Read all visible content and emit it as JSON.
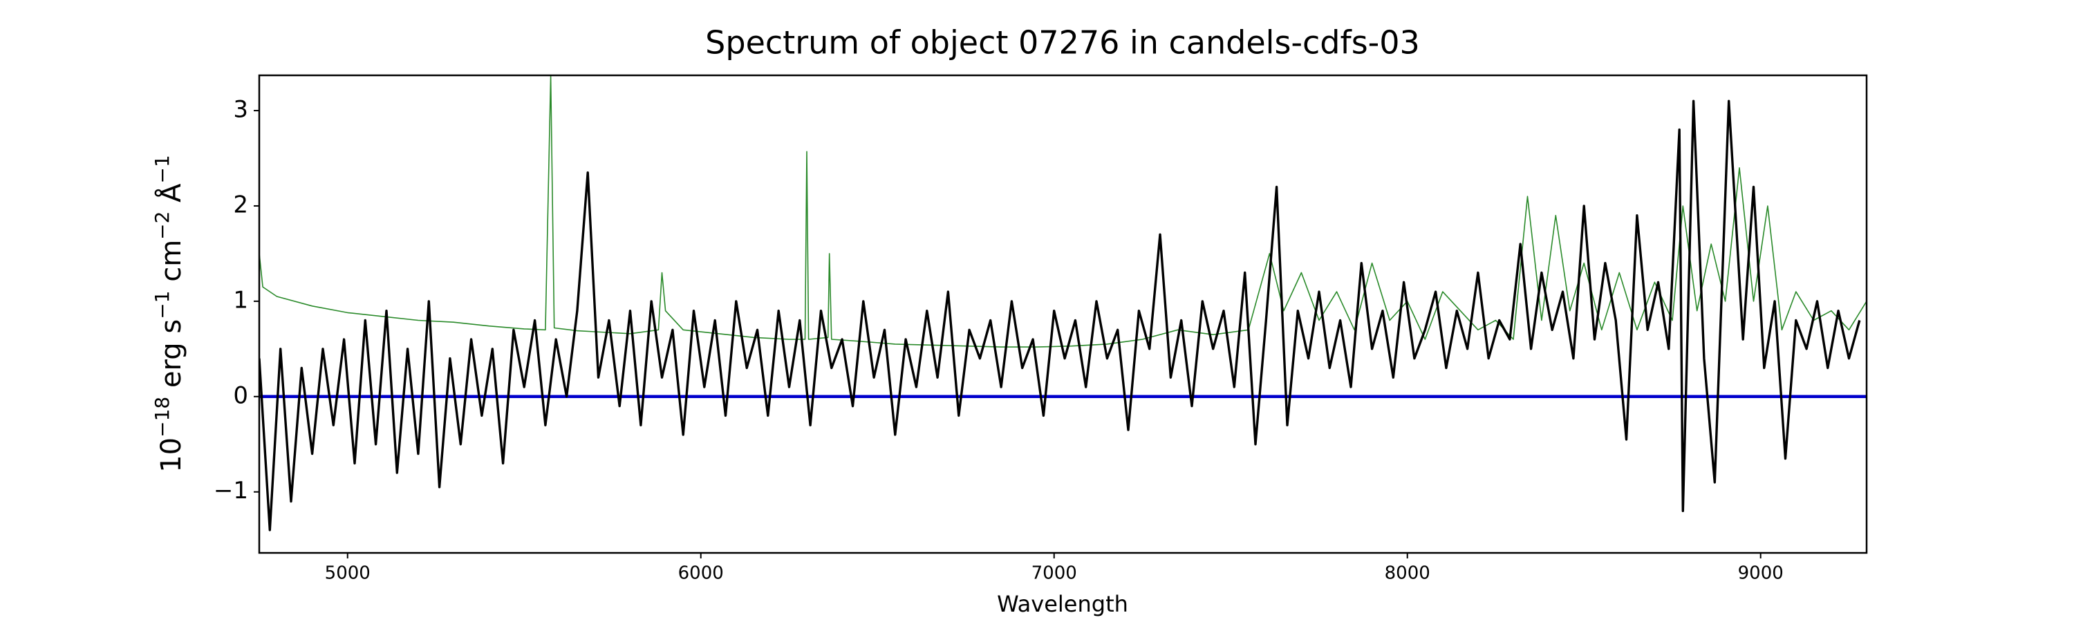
{
  "chart_data": {
    "type": "line",
    "title": "Spectrum of object 07276 in candels-cdfs-03",
    "xlabel": "Wavelength",
    "ylabel": [
      {
        "text": "10"
      },
      {
        "text": "−18",
        "sup": true
      },
      {
        "text": " erg s"
      },
      {
        "text": "−1",
        "sup": true
      },
      {
        "text": " cm"
      },
      {
        "text": "−2",
        "sup": true
      },
      {
        "text": " Å"
      },
      {
        "text": "−1",
        "sup": true
      }
    ],
    "xlim": [
      4750,
      9300
    ],
    "ylim": [
      -1.64,
      3.37
    ],
    "xticks": [
      5000,
      6000,
      7000,
      8000,
      9000
    ],
    "yticks": [
      {
        "value": -1,
        "label": "−1"
      },
      0,
      1,
      2,
      3
    ],
    "series": [
      {
        "color": "#2a8a2a",
        "width": 1.6,
        "x": [
          4750,
          4760,
          4800,
          4900,
          5000,
          5100,
          5200,
          5300,
          5400,
          5500,
          5560,
          5575,
          5585,
          5650,
          5700,
          5800,
          5880,
          5890,
          5900,
          5950,
          6050,
          6150,
          6250,
          6295,
          6300,
          6305,
          6360,
          6364,
          6370,
          6450,
          6550,
          6650,
          6750,
          6850,
          6950,
          7050,
          7150,
          7250,
          7350,
          7450,
          7550,
          7610,
          7650,
          7700,
          7750,
          7800,
          7850,
          7900,
          7950,
          8000,
          8050,
          8100,
          8150,
          8200,
          8250,
          8300,
          8340,
          8380,
          8420,
          8460,
          8500,
          8550,
          8600,
          8650,
          8700,
          8750,
          8780,
          8820,
          8860,
          8900,
          8940,
          8980,
          9020,
          9060,
          9100,
          9150,
          9200,
          9250,
          9300
        ],
        "values": [
          1.5,
          1.15,
          1.05,
          0.95,
          0.88,
          0.84,
          0.8,
          0.78,
          0.74,
          0.71,
          0.7,
          3.37,
          0.72,
          0.69,
          0.68,
          0.66,
          0.7,
          1.3,
          0.9,
          0.7,
          0.66,
          0.62,
          0.6,
          0.6,
          2.57,
          0.6,
          0.62,
          1.5,
          0.6,
          0.58,
          0.55,
          0.54,
          0.53,
          0.52,
          0.52,
          0.53,
          0.55,
          0.6,
          0.7,
          0.65,
          0.7,
          1.5,
          0.9,
          1.3,
          0.8,
          1.1,
          0.7,
          1.4,
          0.8,
          1.0,
          0.6,
          1.1,
          0.9,
          0.7,
          0.8,
          0.6,
          2.1,
          0.8,
          1.9,
          0.9,
          1.4,
          0.7,
          1.3,
          0.7,
          1.2,
          0.8,
          2.0,
          0.9,
          1.6,
          1.0,
          2.4,
          1.0,
          2.0,
          0.7,
          1.1,
          0.8,
          0.9,
          0.7,
          1.0
        ]
      },
      {
        "color": "#0000cc",
        "width": 4.5,
        "x": [
          4750,
          9300
        ],
        "values": [
          0,
          0
        ]
      },
      {
        "color": "#000000",
        "width": 3.4,
        "x": [
          4750,
          4780,
          4810,
          4840,
          4870,
          4900,
          4930,
          4960,
          4990,
          5020,
          5050,
          5080,
          5110,
          5140,
          5170,
          5200,
          5230,
          5260,
          5290,
          5320,
          5350,
          5380,
          5410,
          5440,
          5470,
          5500,
          5530,
          5560,
          5590,
          5620,
          5650,
          5680,
          5710,
          5740,
          5770,
          5800,
          5830,
          5860,
          5890,
          5920,
          5950,
          5980,
          6010,
          6040,
          6070,
          6100,
          6130,
          6160,
          6190,
          6220,
          6250,
          6280,
          6310,
          6340,
          6370,
          6400,
          6430,
          6460,
          6490,
          6520,
          6550,
          6580,
          6610,
          6640,
          6670,
          6700,
          6730,
          6760,
          6790,
          6820,
          6850,
          6880,
          6910,
          6940,
          6970,
          7000,
          7030,
          7060,
          7090,
          7120,
          7150,
          7180,
          7210,
          7240,
          7270,
          7300,
          7330,
          7360,
          7390,
          7420,
          7450,
          7480,
          7510,
          7540,
          7570,
          7600,
          7630,
          7660,
          7690,
          7720,
          7750,
          7780,
          7810,
          7840,
          7870,
          7900,
          7930,
          7960,
          7990,
          8020,
          8050,
          8080,
          8110,
          8140,
          8170,
          8200,
          8230,
          8260,
          8290,
          8320,
          8350,
          8380,
          8410,
          8440,
          8470,
          8500,
          8530,
          8560,
          8590,
          8620,
          8650,
          8680,
          8710,
          8740,
          8770,
          8780,
          8810,
          8840,
          8870,
          8910,
          8950,
          8980,
          9010,
          9040,
          9070,
          9100,
          9130,
          9160,
          9190,
          9220,
          9250,
          9280
        ],
        "values": [
          0.4,
          -1.4,
          0.5,
          -1.1,
          0.3,
          -0.6,
          0.5,
          -0.3,
          0.6,
          -0.7,
          0.8,
          -0.5,
          0.9,
          -0.8,
          0.5,
          -0.6,
          1.0,
          -0.95,
          0.4,
          -0.5,
          0.6,
          -0.2,
          0.5,
          -0.7,
          0.7,
          0.1,
          0.8,
          -0.3,
          0.6,
          0.0,
          0.9,
          2.35,
          0.2,
          0.8,
          -0.1,
          0.9,
          -0.3,
          1.0,
          0.2,
          0.7,
          -0.4,
          0.9,
          0.1,
          0.8,
          -0.2,
          1.0,
          0.3,
          0.7,
          -0.2,
          0.9,
          0.1,
          0.8,
          -0.3,
          0.9,
          0.3,
          0.6,
          -0.1,
          1.0,
          0.2,
          0.7,
          -0.4,
          0.6,
          0.1,
          0.9,
          0.2,
          1.1,
          -0.2,
          0.7,
          0.4,
          0.8,
          0.1,
          1.0,
          0.3,
          0.6,
          -0.2,
          0.9,
          0.4,
          0.8,
          0.1,
          1.0,
          0.4,
          0.7,
          -0.35,
          0.9,
          0.5,
          1.7,
          0.2,
          0.8,
          -0.1,
          1.0,
          0.5,
          0.9,
          0.1,
          1.3,
          -0.5,
          0.8,
          2.2,
          -0.3,
          0.9,
          0.4,
          1.1,
          0.3,
          0.8,
          0.1,
          1.4,
          0.5,
          0.9,
          0.2,
          1.2,
          0.4,
          0.7,
          1.1,
          0.3,
          0.9,
          0.5,
          1.3,
          0.4,
          0.8,
          0.6,
          1.6,
          0.5,
          1.3,
          0.7,
          1.1,
          0.4,
          2.0,
          0.6,
          1.4,
          0.8,
          -0.45,
          1.9,
          0.7,
          1.2,
          0.5,
          2.8,
          -1.2,
          3.1,
          0.4,
          -0.9,
          3.1,
          0.6,
          2.2,
          0.3,
          1.0,
          -0.65,
          0.8,
          0.5,
          1.0,
          0.3,
          0.9,
          0.4,
          0.8
        ]
      }
    ]
  }
}
